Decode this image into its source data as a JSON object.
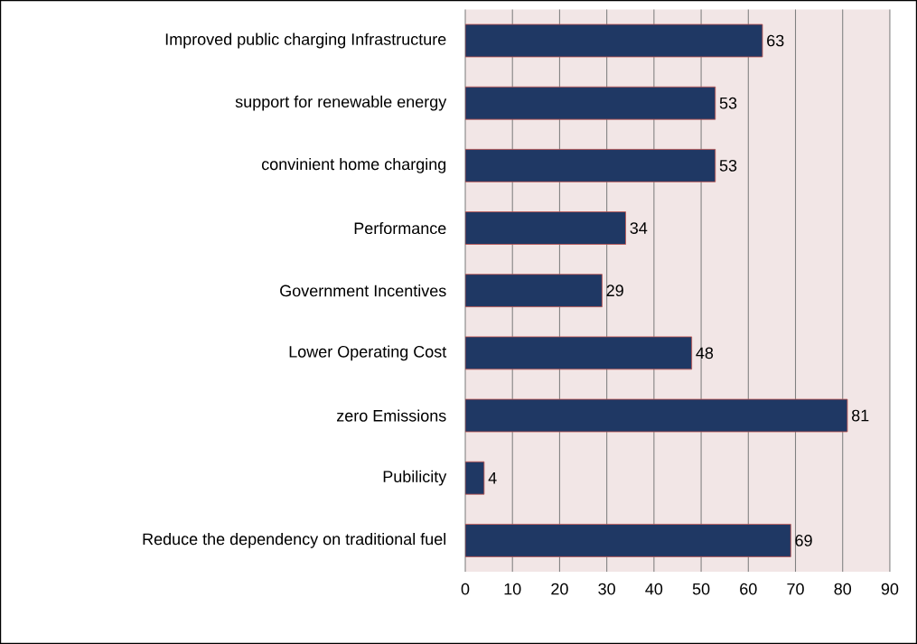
{
  "chart_data": {
    "type": "bar",
    "orientation": "horizontal",
    "categories": [
      "Improved public charging Infrastructure",
      "support for renewable energy",
      "convinient home charging",
      "Performance",
      "Government Incentives",
      "Lower Operating Cost",
      "zero Emissions",
      "Pubilicity",
      "Reduce the dependency on traditional fuel"
    ],
    "values": [
      63,
      53,
      53,
      34,
      29,
      48,
      81,
      4,
      69
    ],
    "color": "#1f3864",
    "xlim": [
      0,
      90
    ],
    "xticks": [
      0,
      10,
      20,
      30,
      40,
      50,
      60,
      70,
      80,
      90
    ],
    "grid": "x",
    "data_labels": true
  }
}
